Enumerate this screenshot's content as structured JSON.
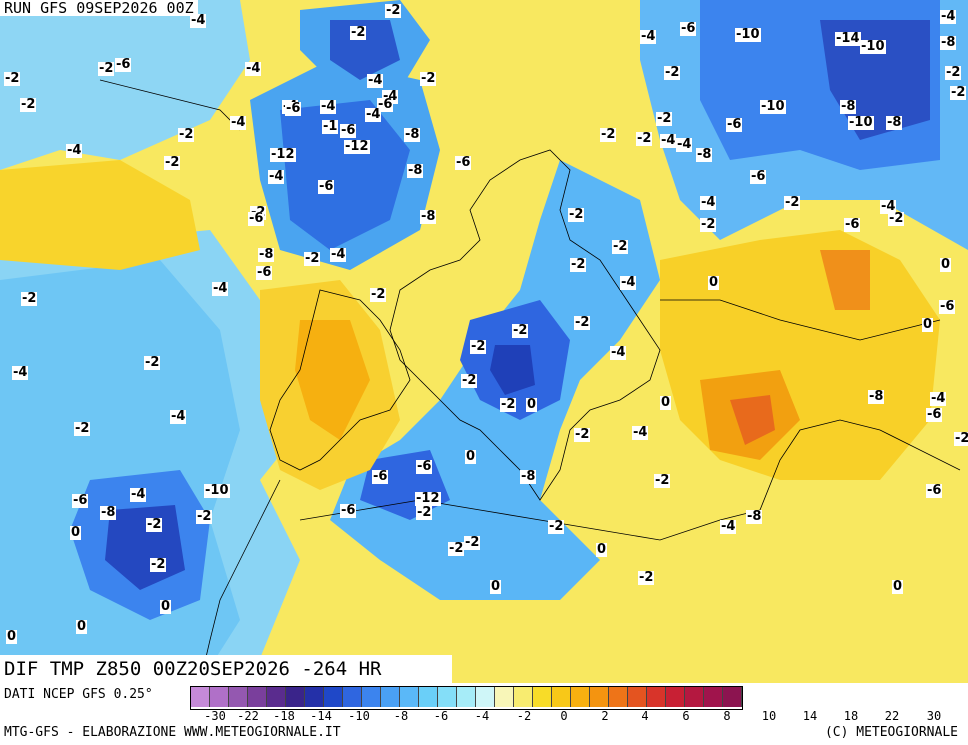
{
  "header": {
    "run_label": "RUN GFS 09SEP2026 00Z"
  },
  "overlay": {
    "valid_label": "DIF TMP Z850 00Z20SEP2026 -264 HR"
  },
  "footer": {
    "source": "DATI NCEP GFS 0.25°",
    "elaboration": "MTG-GFS - ELABORAZIONE WWW.METEOGIORNALE.IT",
    "copyright": "(C) METEOGIORNALE"
  },
  "legend": {
    "colors": [
      "#c58ad8",
      "#b070c8",
      "#9458b0",
      "#7a3f9c",
      "#5a2c8e",
      "#3a248a",
      "#2430a8",
      "#1f48c8",
      "#2f66e0",
      "#3c84ee",
      "#4aa0f4",
      "#5ab8f8",
      "#6acff8",
      "#84def8",
      "#a6ecf8",
      "#cff6f8",
      "#f8f6b8",
      "#f8ec70",
      "#f8dc28",
      "#f8c818",
      "#f8b010",
      "#f49410",
      "#ee7418",
      "#e45420",
      "#d8342a",
      "#c82034",
      "#b41840",
      "#a0144c",
      "#8c1450"
    ],
    "ticks": [
      "-30",
      "-22",
      "-18",
      "-14",
      "-10",
      "-8",
      "-6",
      "-4",
      "-2",
      "0",
      "2",
      "4",
      "6",
      "8",
      "10",
      "14",
      "18",
      "22",
      "30"
    ]
  },
  "map_values": [
    "-4",
    "-2",
    "-4",
    "-2",
    "-6",
    "-2",
    "-2",
    "-4",
    "-2",
    "-4",
    "-4",
    "-6",
    "-10",
    "-14",
    "-10",
    "-8",
    "-4",
    "-2",
    "-2",
    "-2",
    "-4",
    "-6",
    "-2",
    "-2",
    "-4",
    "-6",
    "-4",
    "-4",
    "-8",
    "-12",
    "-10",
    "-8",
    "-4",
    "-2",
    "-1",
    "-6",
    "-8",
    "-6",
    "-2",
    "-2",
    "-12",
    "-8",
    "-4",
    "-8",
    "-6",
    "-4",
    "-10",
    "-6",
    "-4",
    "-6",
    "-2",
    "-2",
    "-4",
    "-2",
    "-4",
    "-8",
    "-2",
    "-6",
    "-2",
    "0",
    "-2",
    "-6",
    "-8",
    "-2",
    "-4",
    "-2",
    "-4",
    "-4",
    "0",
    "-2",
    "-2",
    "-6",
    "-6",
    "-2",
    "0",
    "-2",
    "-4",
    "-2",
    "-2",
    "-2",
    "0",
    "-2",
    "-4",
    "-8",
    "-4",
    "-2",
    "0",
    "-2",
    "-4",
    "-6",
    "-2",
    "-4",
    "0",
    "-2",
    "-6",
    "-6",
    "-8",
    "-2",
    "-4",
    "-6",
    "-10",
    "-6",
    "-8",
    "-2",
    "-2",
    "-12",
    "-6",
    "-2",
    "-8",
    "0",
    "-2",
    "-4",
    "-2",
    "-2",
    "-2",
    "0",
    "-2",
    "0",
    "0",
    "0",
    "0",
    "0"
  ]
}
